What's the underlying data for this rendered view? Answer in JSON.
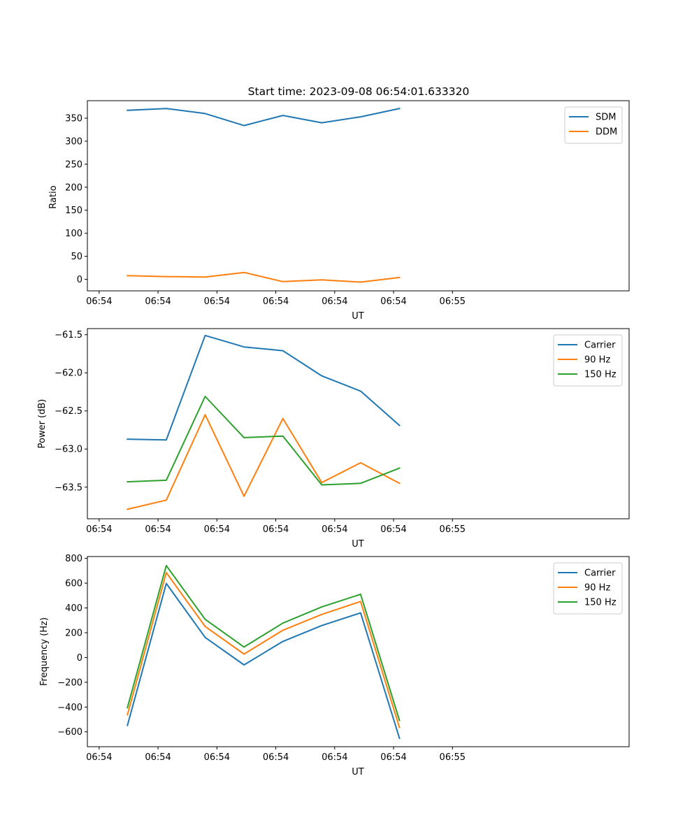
{
  "chart_data": [
    {
      "type": "line",
      "title": "Start time: 2023-09-08 06:54:01.633320",
      "xlabel": "UT",
      "ylabel": "Ratio",
      "xlim": [
        -0.1,
        4.5
      ],
      "ylim": [
        -25,
        388
      ],
      "x_ticks": [
        0,
        0.5,
        1,
        1.5,
        2,
        2.5,
        3
      ],
      "x_tick_labels": [
        "06:54",
        "06:54",
        "06:54",
        "06:54",
        "06:54",
        "06:54",
        "06:55"
      ],
      "y_ticks": [
        0,
        50,
        100,
        150,
        200,
        250,
        300,
        350
      ],
      "y_tick_labels": [
        "0",
        "50",
        "100",
        "150",
        "200",
        "250",
        "300",
        "350"
      ],
      "legend_position": "top-right",
      "x": [
        0.24,
        0.57,
        0.9,
        1.23,
        1.56,
        1.89,
        2.22,
        2.55
      ],
      "series": [
        {
          "name": "SDM",
          "color": "#1f77b4",
          "values": [
            367,
            371,
            360,
            334,
            356,
            340,
            353,
            371
          ]
        },
        {
          "name": "DDM",
          "color": "#ff7f0e",
          "values": [
            8,
            6,
            5,
            15,
            -5,
            -1,
            -6,
            4
          ]
        }
      ]
    },
    {
      "type": "line",
      "title": "",
      "xlabel": "UT",
      "ylabel": "Power (dB)",
      "xlim": [
        -0.1,
        4.5
      ],
      "ylim": [
        -63.915,
        -61.42
      ],
      "x_ticks": [
        0,
        0.5,
        1,
        1.5,
        2,
        2.5,
        3
      ],
      "x_tick_labels": [
        "06:54",
        "06:54",
        "06:54",
        "06:54",
        "06:54",
        "06:54",
        "06:55"
      ],
      "y_ticks": [
        -63.5,
        -63.0,
        -62.5,
        -62.0,
        -61.5
      ],
      "y_tick_labels": [
        "−63.5",
        "−63.0",
        "−62.5",
        "−62.0",
        "−61.5"
      ],
      "legend_position": "top-right",
      "x": [
        0.24,
        0.57,
        0.9,
        1.23,
        1.56,
        1.89,
        2.22,
        2.55
      ],
      "series": [
        {
          "name": "Carrier",
          "color": "#1f77b4",
          "values": [
            -62.87,
            -62.88,
            -61.51,
            -61.66,
            -61.71,
            -62.04,
            -62.24,
            -62.69
          ]
        },
        {
          "name": "90 Hz",
          "color": "#ff7f0e",
          "values": [
            -63.79,
            -63.67,
            -62.55,
            -63.62,
            -62.6,
            -63.44,
            -63.18,
            -63.45
          ]
        },
        {
          "name": "150 Hz",
          "color": "#2ca02c",
          "values": [
            -63.43,
            -63.41,
            -62.31,
            -62.85,
            -62.83,
            -63.47,
            -63.45,
            -63.25
          ]
        }
      ]
    },
    {
      "type": "line",
      "title": "",
      "xlabel": "UT",
      "ylabel": "Frequency (Hz)",
      "xlim": [
        -0.1,
        4.5
      ],
      "ylim": [
        -720,
        815
      ],
      "x_ticks": [
        0,
        0.5,
        1,
        1.5,
        2,
        2.5,
        3
      ],
      "x_tick_labels": [
        "06:54",
        "06:54",
        "06:54",
        "06:54",
        "06:54",
        "06:54",
        "06:55"
      ],
      "y_ticks": [
        -600,
        -400,
        -200,
        0,
        200,
        400,
        600,
        800
      ],
      "y_tick_labels": [
        "−600",
        "−400",
        "−200",
        "0",
        "200",
        "400",
        "600",
        "800"
      ],
      "legend_position": "top-right",
      "x": [
        0.24,
        0.57,
        0.9,
        1.23,
        1.56,
        1.89,
        2.22,
        2.55
      ],
      "series": [
        {
          "name": "Carrier",
          "color": "#1f77b4",
          "values": [
            -548,
            598,
            162,
            -60,
            130,
            258,
            360,
            -652
          ]
        },
        {
          "name": "90 Hz",
          "color": "#ff7f0e",
          "values": [
            -462,
            685,
            250,
            28,
            220,
            348,
            452,
            -565
          ]
        },
        {
          "name": "150 Hz",
          "color": "#2ca02c",
          "values": [
            -405,
            742,
            308,
            85,
            278,
            408,
            510,
            -508
          ]
        }
      ]
    }
  ]
}
